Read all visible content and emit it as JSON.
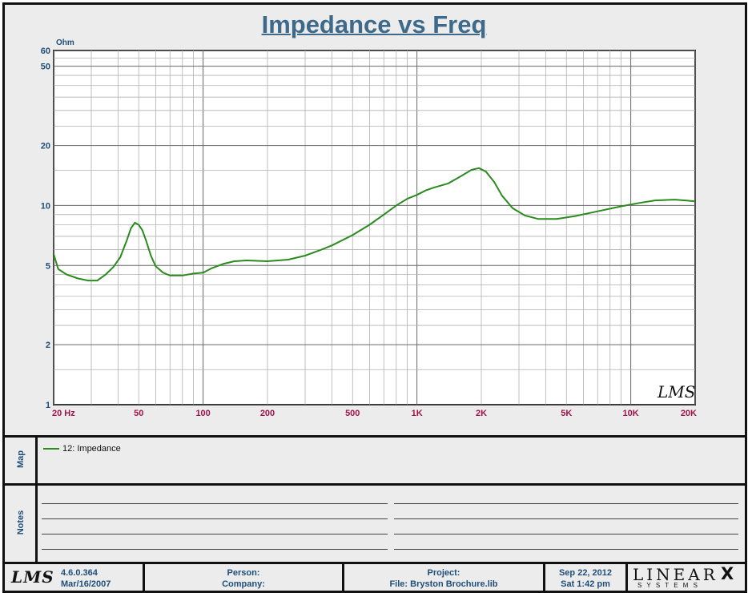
{
  "chart_data": {
    "type": "line",
    "title": "Impedance vs Freq",
    "ylabel": "Ohm",
    "xscale": "log",
    "yscale": "log",
    "xlim": [
      20,
      20000
    ],
    "ylim": [
      1,
      60
    ],
    "x_ticks": [
      {
        "v": 20,
        "label": "20  Hz"
      },
      {
        "v": 50,
        "label": "50"
      },
      {
        "v": 100,
        "label": "100"
      },
      {
        "v": 200,
        "label": "200"
      },
      {
        "v": 500,
        "label": "500"
      },
      {
        "v": 1000,
        "label": "1K"
      },
      {
        "v": 2000,
        "label": "2K"
      },
      {
        "v": 5000,
        "label": "5K"
      },
      {
        "v": 10000,
        "label": "10K"
      },
      {
        "v": 20000,
        "label": "20K"
      }
    ],
    "y_ticks": [
      {
        "v": 60,
        "label": "60"
      },
      {
        "v": 50,
        "label": "50"
      },
      {
        "v": 20,
        "label": "20"
      },
      {
        "v": 10,
        "label": "10"
      },
      {
        "v": 5,
        "label": "5"
      },
      {
        "v": 2,
        "label": "2"
      },
      {
        "v": 1,
        "label": "1"
      }
    ],
    "grid": true,
    "series": [
      {
        "name": "12: Impedance",
        "color": "#2a8a1e",
        "points": [
          [
            20,
            5.7
          ],
          [
            21,
            4.8
          ],
          [
            23,
            4.5
          ],
          [
            26,
            4.3
          ],
          [
            29,
            4.2
          ],
          [
            32,
            4.2
          ],
          [
            35,
            4.5
          ],
          [
            38,
            4.9
          ],
          [
            41,
            5.5
          ],
          [
            44,
            6.7
          ],
          [
            46,
            7.7
          ],
          [
            48,
            8.2
          ],
          [
            50,
            8.0
          ],
          [
            52,
            7.5
          ],
          [
            54,
            6.7
          ],
          [
            57,
            5.6
          ],
          [
            60,
            4.95
          ],
          [
            65,
            4.6
          ],
          [
            70,
            4.45
          ],
          [
            80,
            4.45
          ],
          [
            90,
            4.55
          ],
          [
            100,
            4.6
          ],
          [
            110,
            4.85
          ],
          [
            125,
            5.1
          ],
          [
            140,
            5.25
          ],
          [
            160,
            5.3
          ],
          [
            200,
            5.25
          ],
          [
            250,
            5.35
          ],
          [
            300,
            5.6
          ],
          [
            350,
            5.95
          ],
          [
            400,
            6.3
          ],
          [
            500,
            7.1
          ],
          [
            600,
            8.0
          ],
          [
            700,
            9.0
          ],
          [
            800,
            10.0
          ],
          [
            900,
            10.8
          ],
          [
            1000,
            11.3
          ],
          [
            1100,
            11.9
          ],
          [
            1200,
            12.3
          ],
          [
            1400,
            12.9
          ],
          [
            1600,
            14.0
          ],
          [
            1800,
            15.1
          ],
          [
            1950,
            15.4
          ],
          [
            2100,
            14.8
          ],
          [
            2300,
            13.1
          ],
          [
            2500,
            11.2
          ],
          [
            2800,
            9.7
          ],
          [
            3200,
            8.9
          ],
          [
            3700,
            8.55
          ],
          [
            4500,
            8.55
          ],
          [
            5500,
            8.85
          ],
          [
            7000,
            9.35
          ],
          [
            9000,
            9.9
          ],
          [
            11000,
            10.3
          ],
          [
            13000,
            10.6
          ],
          [
            16000,
            10.7
          ],
          [
            18000,
            10.6
          ],
          [
            20000,
            10.5
          ]
        ]
      }
    ]
  },
  "map": {
    "label": "Map",
    "legend": "12: Impedance"
  },
  "notes": {
    "label": "Notes"
  },
  "footer": {
    "logo": "LMS",
    "version": "4.6.0.364",
    "version_date": "Mar/16/2007",
    "person": "Person:",
    "company": "Company:",
    "project": "Project:",
    "file": "File: Bryston Brochure.lib",
    "date": "Sep 22, 2012",
    "time": "Sat  1:42 pm",
    "brand": "LINEAR",
    "brand_x": "X",
    "brand_sub": "S Y S T E M S"
  }
}
